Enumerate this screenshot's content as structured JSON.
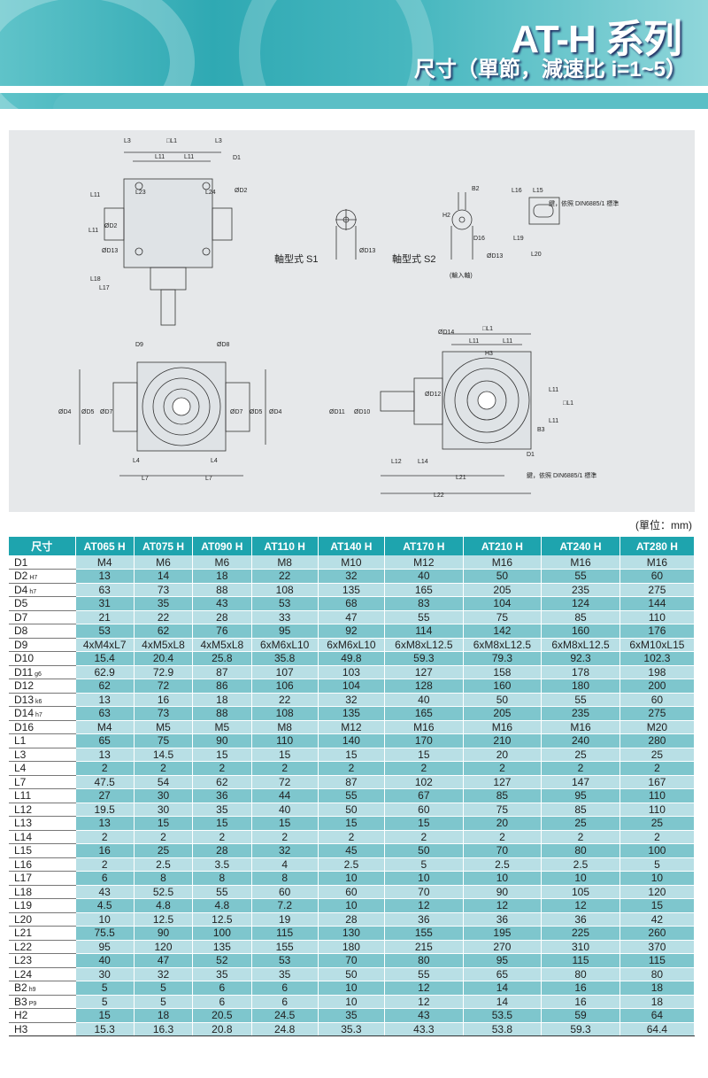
{
  "header": {
    "title": "AT-H 系列",
    "subtitle": "尺寸（單節，減速比 i=1~5）"
  },
  "drawing": {
    "s1_label": "軸型式 S1",
    "s2_label": "軸型式 S2",
    "input_shaft": "(輸入軸)",
    "key_note_1": "鍵，依照 DIN6885/1 標準",
    "key_note_2": "鍵，依照 DIN6885/1 標準",
    "dims": [
      "L3",
      "□L1",
      "L3",
      "L11",
      "L11",
      "D1",
      "L23",
      "L24",
      "ØD2",
      "L11",
      "L11",
      "ØD2",
      "ØD13",
      "L18",
      "L17",
      "ØD13",
      "ØD13",
      "B2",
      "H2",
      "D16",
      "L16",
      "L15",
      "L19",
      "L20",
      "D9",
      "ØD8",
      "ØD4",
      "ØD5",
      "ØD7",
      "ØD7",
      "ØD5",
      "ØD4",
      "L4",
      "L4",
      "L7",
      "L7",
      "□L1",
      "L11",
      "L11",
      "H3",
      "ØD14",
      "ØD11",
      "ØD10",
      "ØD12",
      "L11",
      "L11",
      "□L1",
      "B3",
      "D1",
      "L12",
      "L14",
      "L21",
      "L22"
    ]
  },
  "unit": "(單位：mm)",
  "table": {
    "corner": "尺寸",
    "columns": [
      "AT065 H",
      "AT075 H",
      "AT090 H",
      "AT110 H",
      "AT140 H",
      "AT170 H",
      "AT210 H",
      "AT240 H",
      "AT280 H"
    ],
    "rows": [
      {
        "label": "D1",
        "tol": "",
        "values": [
          "M4",
          "M6",
          "M6",
          "M8",
          "M10",
          "M12",
          "M16",
          "M16",
          "M16"
        ]
      },
      {
        "label": "D2",
        "tol": "H7",
        "values": [
          "13",
          "14",
          "18",
          "22",
          "32",
          "40",
          "50",
          "55",
          "60"
        ]
      },
      {
        "label": "D4",
        "tol": "h7",
        "values": [
          "63",
          "73",
          "88",
          "108",
          "135",
          "165",
          "205",
          "235",
          "275"
        ]
      },
      {
        "label": "D5",
        "tol": "",
        "values": [
          "31",
          "35",
          "43",
          "53",
          "68",
          "83",
          "104",
          "124",
          "144"
        ]
      },
      {
        "label": "D7",
        "tol": "",
        "values": [
          "21",
          "22",
          "28",
          "33",
          "47",
          "55",
          "75",
          "85",
          "110"
        ]
      },
      {
        "label": "D8",
        "tol": "",
        "values": [
          "53",
          "62",
          "76",
          "95",
          "92",
          "114",
          "142",
          "160",
          "176"
        ]
      },
      {
        "label": "D9",
        "tol": "",
        "values": [
          "4xM4xL7",
          "4xM5xL8",
          "4xM5xL8",
          "6xM6xL10",
          "6xM6xL10",
          "6xM8xL12.5",
          "6xM8xL12.5",
          "6xM8xL12.5",
          "6xM10xL15"
        ]
      },
      {
        "label": "D10",
        "tol": "",
        "values": [
          "15.4",
          "20.4",
          "25.8",
          "35.8",
          "49.8",
          "59.3",
          "79.3",
          "92.3",
          "102.3"
        ]
      },
      {
        "label": "D11",
        "tol": "g6",
        "values": [
          "62.9",
          "72.9",
          "87",
          "107",
          "103",
          "127",
          "158",
          "178",
          "198"
        ]
      },
      {
        "label": "D12",
        "tol": "",
        "values": [
          "62",
          "72",
          "86",
          "106",
          "104",
          "128",
          "160",
          "180",
          "200"
        ]
      },
      {
        "label": "D13",
        "tol": "k6",
        "values": [
          "13",
          "16",
          "18",
          "22",
          "32",
          "40",
          "50",
          "55",
          "60"
        ]
      },
      {
        "label": "D14",
        "tol": "h7",
        "values": [
          "63",
          "73",
          "88",
          "108",
          "135",
          "165",
          "205",
          "235",
          "275"
        ]
      },
      {
        "label": "D16",
        "tol": "",
        "values": [
          "M4",
          "M5",
          "M5",
          "M8",
          "M12",
          "M16",
          "M16",
          "M16",
          "M20"
        ]
      },
      {
        "label": "L1",
        "tol": "",
        "values": [
          "65",
          "75",
          "90",
          "110",
          "140",
          "170",
          "210",
          "240",
          "280"
        ]
      },
      {
        "label": "L3",
        "tol": "",
        "values": [
          "13",
          "14.5",
          "15",
          "15",
          "15",
          "15",
          "20",
          "25",
          "25"
        ]
      },
      {
        "label": "L4",
        "tol": "",
        "values": [
          "2",
          "2",
          "2",
          "2",
          "2",
          "2",
          "2",
          "2",
          "2"
        ]
      },
      {
        "label": "L7",
        "tol": "",
        "values": [
          "47.5",
          "54",
          "62",
          "72",
          "87",
          "102",
          "127",
          "147",
          "167"
        ]
      },
      {
        "label": "L11",
        "tol": "",
        "values": [
          "27",
          "30",
          "36",
          "44",
          "55",
          "67",
          "85",
          "95",
          "110"
        ]
      },
      {
        "label": "L12",
        "tol": "",
        "values": [
          "19.5",
          "30",
          "35",
          "40",
          "50",
          "60",
          "75",
          "85",
          "110"
        ]
      },
      {
        "label": "L13",
        "tol": "",
        "values": [
          "13",
          "15",
          "15",
          "15",
          "15",
          "15",
          "20",
          "25",
          "25"
        ]
      },
      {
        "label": "L14",
        "tol": "",
        "values": [
          "2",
          "2",
          "2",
          "2",
          "2",
          "2",
          "2",
          "2",
          "2"
        ]
      },
      {
        "label": "L15",
        "tol": "",
        "values": [
          "16",
          "25",
          "28",
          "32",
          "45",
          "50",
          "70",
          "80",
          "100"
        ]
      },
      {
        "label": "L16",
        "tol": "",
        "values": [
          "2",
          "2.5",
          "3.5",
          "4",
          "2.5",
          "5",
          "2.5",
          "2.5",
          "5"
        ]
      },
      {
        "label": "L17",
        "tol": "",
        "values": [
          "6",
          "8",
          "8",
          "8",
          "10",
          "10",
          "10",
          "10",
          "10"
        ]
      },
      {
        "label": "L18",
        "tol": "",
        "values": [
          "43",
          "52.5",
          "55",
          "60",
          "60",
          "70",
          "90",
          "105",
          "120"
        ]
      },
      {
        "label": "L19",
        "tol": "",
        "values": [
          "4.5",
          "4.8",
          "4.8",
          "7.2",
          "10",
          "12",
          "12",
          "12",
          "15"
        ]
      },
      {
        "label": "L20",
        "tol": "",
        "values": [
          "10",
          "12.5",
          "12.5",
          "19",
          "28",
          "36",
          "36",
          "36",
          "42"
        ]
      },
      {
        "label": "L21",
        "tol": "",
        "values": [
          "75.5",
          "90",
          "100",
          "115",
          "130",
          "155",
          "195",
          "225",
          "260"
        ]
      },
      {
        "label": "L22",
        "tol": "",
        "values": [
          "95",
          "120",
          "135",
          "155",
          "180",
          "215",
          "270",
          "310",
          "370"
        ]
      },
      {
        "label": "L23",
        "tol": "",
        "values": [
          "40",
          "47",
          "52",
          "53",
          "70",
          "80",
          "95",
          "115",
          "115"
        ]
      },
      {
        "label": "L24",
        "tol": "",
        "values": [
          "30",
          "32",
          "35",
          "35",
          "50",
          "55",
          "65",
          "80",
          "80"
        ]
      },
      {
        "label": "B2",
        "tol": "h9",
        "values": [
          "5",
          "5",
          "6",
          "6",
          "10",
          "12",
          "14",
          "16",
          "18"
        ]
      },
      {
        "label": "B3",
        "tol": "P9",
        "values": [
          "5",
          "5",
          "6",
          "6",
          "10",
          "12",
          "14",
          "16",
          "18"
        ]
      },
      {
        "label": "H2",
        "tol": "",
        "values": [
          "15",
          "18",
          "20.5",
          "24.5",
          "35",
          "43",
          "53.5",
          "59",
          "64"
        ]
      },
      {
        "label": "H3",
        "tol": "",
        "values": [
          "15.3",
          "16.3",
          "20.8",
          "24.8",
          "35.3",
          "43.3",
          "53.8",
          "59.3",
          "64.4"
        ]
      }
    ]
  }
}
